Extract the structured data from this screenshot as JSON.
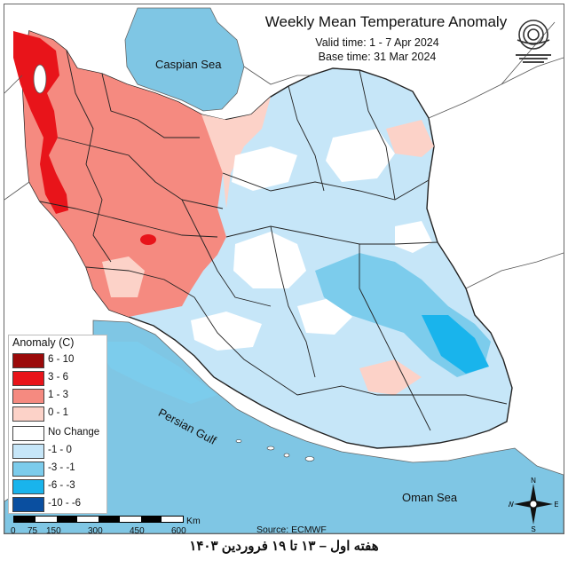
{
  "header": {
    "title": "Weekly Mean Temperature Anomaly",
    "valid_time": "Valid time: 1 - 7 Apr 2024",
    "base_time": "Base time: 31 Mar 2024"
  },
  "map_labels": {
    "caspian": "Caspian Sea",
    "persian_gulf": "Persian Gulf",
    "oman_sea": "Oman Sea"
  },
  "legend": {
    "title": "Anomaly (C)",
    "items": [
      {
        "label": "6 - 10",
        "color": "#9b0a0a"
      },
      {
        "label": "3 - 6",
        "color": "#e8141a"
      },
      {
        "label": "1 - 3",
        "color": "#f58a80"
      },
      {
        "label": "0 - 1",
        "color": "#fcd2c8"
      },
      {
        "label": "No Change",
        "color": "#ffffff"
      },
      {
        "label": "-1 - 0",
        "color": "#c6e6f8"
      },
      {
        "label": "-3 - -1",
        "color": "#7cccec"
      },
      {
        "label": "-6 - -3",
        "color": "#19b4ec"
      },
      {
        "label": "-10 - -6",
        "color": "#0a4fa0"
      }
    ]
  },
  "scale": {
    "unit": "Km",
    "ticks": [
      "0",
      "75",
      "150",
      "300",
      "450",
      "600"
    ]
  },
  "compass": {
    "n": "N",
    "s": "S",
    "e": "E",
    "w": "W"
  },
  "source": "Source: ECMWF",
  "caption": "هفته اول – ۱۳ تا ۱۹ فروردین ۱۴۰۳",
  "colors": {
    "sea": "#7fc6e4",
    "land_outside": "#ffffff",
    "border": "#222222"
  }
}
